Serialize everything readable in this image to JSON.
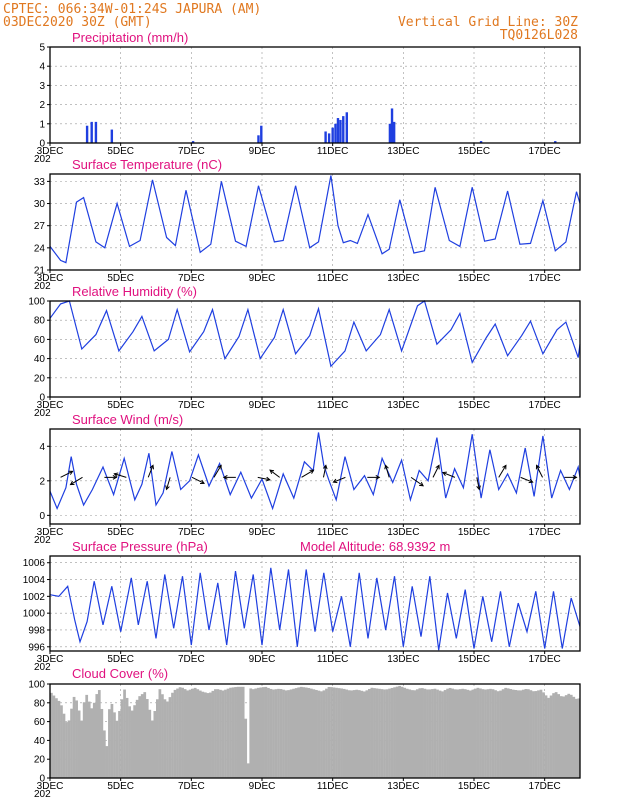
{
  "header": {
    "line1": "CPTEC:   066:34W-01:24S   JAPURA (AM)",
    "line2": "03DEC2020 30Z (GMT)",
    "right1": "Vertical Grid Line: 30Z",
    "right2": "TQ0126L028"
  },
  "x_axis": {
    "min": 3,
    "max": 18,
    "tick_days": [
      3,
      5,
      7,
      9,
      11,
      13,
      15,
      17
    ],
    "tick_labels": [
      "3DEC",
      "5DEC",
      "7DEC",
      "9DEC",
      "11DEC",
      "13DEC",
      "15DEC",
      "17DEC"
    ],
    "sub_label": "202"
  },
  "colors": {
    "series": "#1f3fe0",
    "title": "#e0117f",
    "header": "#e07820",
    "cloud": "#b0b0b0"
  },
  "chart_data": [
    {
      "id": "precip",
      "type": "bar",
      "title": "Precipitation (mm/h)",
      "ylim": [
        0,
        5
      ],
      "yticks": [
        0,
        1,
        2,
        3,
        4,
        5
      ],
      "x": [
        4.05,
        4.18,
        4.3,
        4.75,
        7.05,
        8.9,
        8.98,
        10.8,
        10.9,
        11.0,
        11.08,
        11.15,
        11.22,
        11.3,
        11.4,
        12.62,
        12.68,
        12.74,
        15.2,
        17.3
      ],
      "values": [
        0.9,
        1.1,
        1.1,
        0.7,
        0.1,
        0.4,
        0.9,
        0.6,
        0.5,
        0.8,
        1.0,
        1.3,
        1.2,
        1.4,
        1.6,
        1.0,
        1.8,
        1.1,
        0.1,
        0.1
      ],
      "grid": true
    },
    {
      "id": "temp",
      "type": "line",
      "title": "Surface Temperature (nC)",
      "ylim": [
        21,
        34
      ],
      "yticks": [
        21,
        24,
        27,
        30,
        33
      ],
      "x": [
        3.0,
        3.3,
        3.45,
        3.75,
        3.95,
        4.3,
        4.55,
        4.9,
        5.25,
        5.55,
        5.9,
        6.3,
        6.55,
        6.85,
        7.25,
        7.55,
        7.85,
        8.25,
        8.55,
        8.9,
        9.35,
        9.6,
        9.95,
        10.35,
        10.6,
        10.95,
        11.15,
        11.3,
        11.5,
        11.7,
        12.0,
        12.4,
        12.6,
        12.9,
        13.3,
        13.6,
        13.9,
        14.3,
        14.6,
        14.95,
        15.3,
        15.6,
        15.95,
        16.3,
        16.6,
        16.95,
        17.3,
        17.6,
        17.9,
        18.0
      ],
      "values": [
        24.2,
        22.3,
        22.0,
        30.2,
        30.8,
        24.8,
        24.0,
        30.0,
        24.2,
        25.0,
        33.2,
        25.4,
        24.3,
        31.8,
        23.4,
        24.5,
        33.0,
        24.9,
        24.2,
        32.4,
        24.8,
        25.0,
        32.4,
        24.0,
        24.8,
        33.8,
        27.0,
        24.7,
        25.0,
        24.6,
        28.5,
        23.2,
        23.8,
        30.5,
        23.3,
        23.6,
        32.2,
        25.0,
        24.2,
        32.2,
        24.9,
        25.2,
        31.7,
        24.5,
        24.6,
        30.4,
        23.6,
        24.8,
        31.6,
        30.0
      ],
      "grid": true
    },
    {
      "id": "rh",
      "type": "line",
      "title": "Relative Humidity (%)",
      "ylim": [
        0,
        100
      ],
      "yticks": [
        0,
        20,
        40,
        60,
        80,
        100
      ],
      "x": [
        3.0,
        3.3,
        3.55,
        3.9,
        4.3,
        4.6,
        4.95,
        5.35,
        5.6,
        5.95,
        6.35,
        6.6,
        6.95,
        7.35,
        7.6,
        7.95,
        8.35,
        8.6,
        8.95,
        9.35,
        9.6,
        9.95,
        10.35,
        10.6,
        10.95,
        11.35,
        11.6,
        11.95,
        12.35,
        12.6,
        12.95,
        13.4,
        13.6,
        13.95,
        14.35,
        14.6,
        14.95,
        15.35,
        15.6,
        15.95,
        16.35,
        16.6,
        16.95,
        17.35,
        17.6,
        17.95,
        18.0
      ],
      "values": [
        82,
        97,
        100,
        50,
        65,
        90,
        48,
        68,
        84,
        48,
        60,
        91,
        47,
        68,
        91,
        40,
        63,
        91,
        40,
        62,
        91,
        45,
        64,
        92,
        32,
        48,
        78,
        48,
        65,
        91,
        48,
        95,
        100,
        55,
        70,
        87,
        36,
        62,
        76,
        43,
        64,
        79,
        45,
        70,
        78,
        41,
        55
      ],
      "grid": true
    },
    {
      "id": "wind",
      "type": "line",
      "title": "Surface Wind (m/s)",
      "ylim": [
        -0.5,
        5
      ],
      "yticks": [
        0,
        2,
        4
      ],
      "x": [
        3.0,
        3.2,
        3.45,
        3.6,
        3.75,
        3.95,
        4.2,
        4.5,
        4.8,
        5.1,
        5.4,
        5.6,
        5.8,
        6.0,
        6.2,
        6.45,
        6.7,
        6.95,
        7.2,
        7.5,
        7.8,
        8.1,
        8.4,
        8.7,
        9.0,
        9.3,
        9.6,
        9.9,
        10.2,
        10.45,
        10.6,
        10.75,
        10.9,
        11.1,
        11.35,
        11.6,
        11.9,
        12.15,
        12.4,
        12.7,
        12.95,
        13.2,
        13.45,
        13.7,
        13.95,
        14.2,
        14.45,
        14.7,
        14.95,
        15.2,
        15.45,
        15.7,
        15.95,
        16.2,
        16.45,
        16.7,
        16.95,
        17.2,
        17.45,
        17.7,
        17.95,
        18.0
      ],
      "values": [
        1.4,
        0.4,
        1.6,
        3.4,
        1.8,
        0.6,
        1.5,
        2.8,
        1.2,
        3.3,
        0.9,
        1.8,
        3.6,
        0.6,
        1.3,
        3.7,
        1.5,
        2.0,
        3.5,
        1.7,
        3.0,
        1.2,
        2.5,
        1.0,
        2.1,
        0.4,
        2.4,
        1.0,
        3.1,
        2.6,
        4.8,
        2.9,
        2.0,
        0.9,
        3.4,
        1.5,
        2.3,
        1.2,
        3.3,
        1.9,
        3.2,
        0.9,
        2.6,
        2.0,
        4.5,
        1.0,
        2.7,
        1.6,
        4.7,
        1.0,
        3.8,
        1.5,
        2.4,
        1.3,
        3.9,
        1.1,
        4.6,
        1.0,
        2.6,
        1.5,
        2.8,
        2.2
      ],
      "grid": true
    },
    {
      "id": "pressure",
      "type": "line",
      "title": "Surface Pressure (hPa)",
      "annotation": "Model Altitude: 68.9392 m",
      "ylim": [
        995.5,
        1006.8
      ],
      "yticks": [
        996,
        998,
        1000,
        1002,
        1004,
        1006
      ],
      "x": [
        3.0,
        3.25,
        3.5,
        3.7,
        3.85,
        4.05,
        4.25,
        4.5,
        4.75,
        5.0,
        5.3,
        5.5,
        5.75,
        6.0,
        6.25,
        6.5,
        6.75,
        7.0,
        7.25,
        7.5,
        7.75,
        8.0,
        8.25,
        8.5,
        8.75,
        9.0,
        9.25,
        9.5,
        9.75,
        10.0,
        10.25,
        10.5,
        10.75,
        11.0,
        11.25,
        11.5,
        11.75,
        12.0,
        12.25,
        12.5,
        12.75,
        13.0,
        13.25,
        13.5,
        13.75,
        14.0,
        14.25,
        14.5,
        14.75,
        15.0,
        15.25,
        15.5,
        15.75,
        16.0,
        16.25,
        16.5,
        16.75,
        17.0,
        17.25,
        17.5,
        17.75,
        18.0
      ],
      "values": [
        1002.2,
        1002.0,
        1003.2,
        999.2,
        996.6,
        999.0,
        1003.8,
        998.6,
        1003.2,
        997.8,
        1004.2,
        998.6,
        1003.8,
        997.0,
        1004.6,
        998.2,
        1004.4,
        996.2,
        1004.8,
        998.0,
        1003.6,
        996.2,
        1005.0,
        998.2,
        1004.6,
        996.2,
        1005.4,
        998.0,
        1005.2,
        996.0,
        1005.2,
        997.8,
        1004.8,
        997.8,
        1002.0,
        996.0,
        1004.8,
        997.0,
        1004.2,
        998.0,
        1004.4,
        996.0,
        1003.2,
        997.2,
        1004.4,
        995.6,
        1002.4,
        997.0,
        1002.8,
        995.8,
        1002.0,
        996.6,
        1002.6,
        996.0,
        1001.2,
        997.8,
        1002.6,
        995.8,
        1002.6,
        995.8,
        1001.8,
        998.4
      ],
      "grid": true
    },
    {
      "id": "cloud",
      "type": "area",
      "title": "Cloud Cover (%)",
      "ylim": [
        0,
        100
      ],
      "yticks": [
        0,
        20,
        40,
        60,
        80,
        100
      ],
      "x": [
        3.0,
        3.3,
        3.5,
        3.7,
        3.9,
        4.0,
        4.2,
        4.3,
        4.4,
        4.6,
        4.7,
        4.9,
        5.1,
        5.3,
        5.5,
        5.7,
        5.9,
        6.1,
        6.3,
        6.5,
        6.7,
        6.9,
        7.1,
        7.3,
        7.5,
        7.7,
        7.9,
        8.1,
        8.3,
        8.5,
        8.6,
        8.65,
        8.7,
        8.9,
        9.1,
        9.3,
        9.5,
        9.7,
        9.9,
        10.1,
        10.3,
        10.5,
        10.7,
        10.9,
        11.1,
        11.3,
        11.5,
        11.7,
        11.9,
        12.1,
        12.3,
        12.5,
        12.7,
        12.9,
        13.1,
        13.3,
        13.5,
        13.7,
        13.9,
        14.1,
        14.3,
        14.5,
        14.7,
        14.9,
        15.1,
        15.3,
        15.5,
        15.7,
        15.9,
        16.1,
        16.3,
        16.5,
        16.7,
        16.9,
        17.1,
        17.3,
        17.5,
        17.7,
        17.9,
        18.0
      ],
      "values": [
        92,
        80,
        55,
        90,
        60,
        92,
        72,
        88,
        94,
        30,
        85,
        60,
        95,
        70,
        86,
        92,
        60,
        95,
        80,
        93,
        97,
        93,
        96,
        92,
        90,
        95,
        93,
        96,
        97,
        97,
        2,
        97,
        94,
        96,
        97,
        94,
        95,
        93,
        95,
        97,
        96,
        94,
        92,
        97,
        96,
        95,
        93,
        94,
        92,
        96,
        95,
        94,
        96,
        98,
        95,
        93,
        96,
        94,
        95,
        92,
        96,
        94,
        95,
        93,
        96,
        94,
        95,
        92,
        96,
        94,
        93,
        95,
        92,
        94,
        85,
        92,
        86,
        90,
        84,
        85
      ],
      "grid": true
    }
  ]
}
